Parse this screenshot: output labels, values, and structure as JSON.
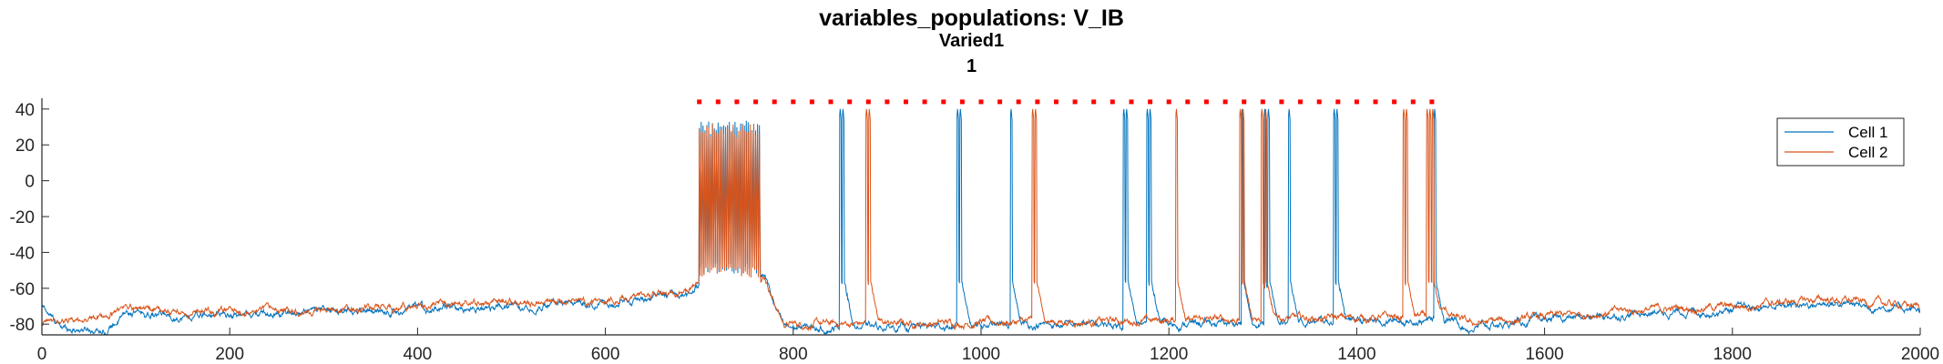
{
  "chart_data": {
    "type": "line",
    "title": "variables_populations: V_IB",
    "subtitle": "Varied1",
    "subtitle2": "1",
    "xlabel": "",
    "ylabel": "",
    "xlim": [
      0,
      2000
    ],
    "ylim": [
      -86,
      46
    ],
    "xticks": [
      0,
      200,
      400,
      600,
      800,
      1000,
      1200,
      1400,
      1600,
      1800,
      2000
    ],
    "yticks": [
      -80,
      -60,
      -40,
      -20,
      0,
      20,
      40
    ],
    "grid": false,
    "legend": {
      "position": "top-right",
      "entries": [
        "Cell 1",
        "Cell 2"
      ]
    },
    "series": [
      {
        "name": "Cell 1",
        "color": "#0072BD",
        "baseline": [
          [
            0,
            -70
          ],
          [
            20,
            -82
          ],
          [
            70,
            -83
          ],
          [
            90,
            -74
          ],
          [
            150,
            -76
          ],
          [
            300,
            -73
          ],
          [
            400,
            -72
          ],
          [
            500,
            -70
          ],
          [
            600,
            -68
          ],
          [
            650,
            -66
          ],
          [
            690,
            -63
          ],
          [
            700,
            -57
          ],
          [
            770,
            -53
          ],
          [
            780,
            -70
          ],
          [
            790,
            -82
          ],
          [
            850,
            -82
          ],
          [
            1000,
            -81
          ],
          [
            1200,
            -80
          ],
          [
            1300,
            -79
          ],
          [
            1480,
            -78
          ],
          [
            1495,
            -76
          ],
          [
            1520,
            -82
          ],
          [
            1600,
            -78
          ],
          [
            1700,
            -74
          ],
          [
            1800,
            -72
          ],
          [
            1900,
            -68
          ],
          [
            2000,
            -72
          ]
        ],
        "burst": {
          "start": 700,
          "end": 765,
          "high": 34,
          "low": -52
        },
        "spikes": [
          850,
          853,
          975,
          978,
          1032,
          1152,
          1155,
          1177,
          1180,
          1278,
          1302,
          1306,
          1328,
          1376,
          1379,
          1483
        ]
      },
      {
        "name": "Cell 2",
        "color": "#D95319",
        "baseline": [
          [
            0,
            -80
          ],
          [
            30,
            -78
          ],
          [
            70,
            -76
          ],
          [
            90,
            -70
          ],
          [
            150,
            -74
          ],
          [
            300,
            -72
          ],
          [
            400,
            -70
          ],
          [
            500,
            -68
          ],
          [
            600,
            -66
          ],
          [
            650,
            -64
          ],
          [
            690,
            -61
          ],
          [
            700,
            -57
          ],
          [
            770,
            -53
          ],
          [
            780,
            -68
          ],
          [
            790,
            -80
          ],
          [
            850,
            -80
          ],
          [
            1000,
            -79
          ],
          [
            1200,
            -78
          ],
          [
            1300,
            -77
          ],
          [
            1480,
            -76
          ],
          [
            1495,
            -74
          ],
          [
            1520,
            -80
          ],
          [
            1600,
            -76
          ],
          [
            1700,
            -72
          ],
          [
            1800,
            -70
          ],
          [
            1900,
            -66
          ],
          [
            2000,
            -70
          ]
        ],
        "burst": {
          "start": 700,
          "end": 765,
          "high": 32,
          "low": -54
        },
        "spikes": [
          878,
          881,
          1055,
          1058,
          1208,
          1276,
          1279,
          1299,
          1303,
          1450,
          1453,
          1475,
          1478,
          1481
        ]
      }
    ],
    "markers": {
      "color": "#FF0000",
      "y": 44,
      "x": [
        700,
        720,
        740,
        760,
        780,
        800,
        820,
        840,
        860,
        880,
        900,
        920,
        940,
        960,
        980,
        1000,
        1020,
        1040,
        1060,
        1080,
        1100,
        1120,
        1140,
        1160,
        1180,
        1200,
        1220,
        1240,
        1260,
        1280,
        1300,
        1320,
        1340,
        1360,
        1380,
        1400,
        1420,
        1440,
        1460,
        1480
      ]
    }
  }
}
